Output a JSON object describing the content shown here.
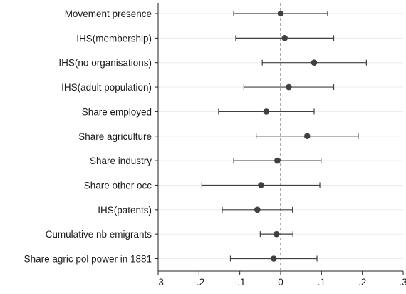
{
  "chart_data": {
    "type": "coefficient-plot",
    "title": "",
    "xlabel": "",
    "ylabel": "",
    "xlim": [
      -0.3,
      0.3
    ],
    "xticks": [
      -0.3,
      -0.2,
      -0.1,
      0,
      0.1,
      0.2,
      0.3
    ],
    "xtick_labels": [
      "-.3",
      "-.2",
      "-.1",
      "0",
      ".1",
      ".2",
      ".3"
    ],
    "reference_line_x": 0,
    "grid": "horizontal",
    "colors": {
      "marker": "#404040",
      "ci": "#404040",
      "reference": "#555555",
      "grid": "#ebebeb"
    },
    "series": [
      {
        "label": "Movement presence",
        "estimate": 0.0,
        "ci_low": -0.115,
        "ci_high": 0.115
      },
      {
        "label": "IHS(membership)",
        "estimate": 0.01,
        "ci_low": -0.11,
        "ci_high": 0.13
      },
      {
        "label": "IHS(no organisations)",
        "estimate": 0.082,
        "ci_low": -0.045,
        "ci_high": 0.21
      },
      {
        "label": "IHS(adult population)",
        "estimate": 0.02,
        "ci_low": -0.09,
        "ci_high": 0.13
      },
      {
        "label": "Share employed",
        "estimate": -0.035,
        "ci_low": -0.152,
        "ci_high": 0.082
      },
      {
        "label": "Share agriculture",
        "estimate": 0.065,
        "ci_low": -0.06,
        "ci_high": 0.19
      },
      {
        "label": "Share industry",
        "estimate": -0.008,
        "ci_low": -0.115,
        "ci_high": 0.099
      },
      {
        "label": "Share other occ",
        "estimate": -0.048,
        "ci_low": -0.193,
        "ci_high": 0.096
      },
      {
        "label": "IHS(patents)",
        "estimate": -0.057,
        "ci_low": -0.143,
        "ci_high": 0.029
      },
      {
        "label": "Cumulative nb emigrants",
        "estimate": -0.01,
        "ci_low": -0.05,
        "ci_high": 0.03
      },
      {
        "label": "Share agric pol power in 1881",
        "estimate": -0.017,
        "ci_low": -0.123,
        "ci_high": 0.089
      }
    ]
  }
}
